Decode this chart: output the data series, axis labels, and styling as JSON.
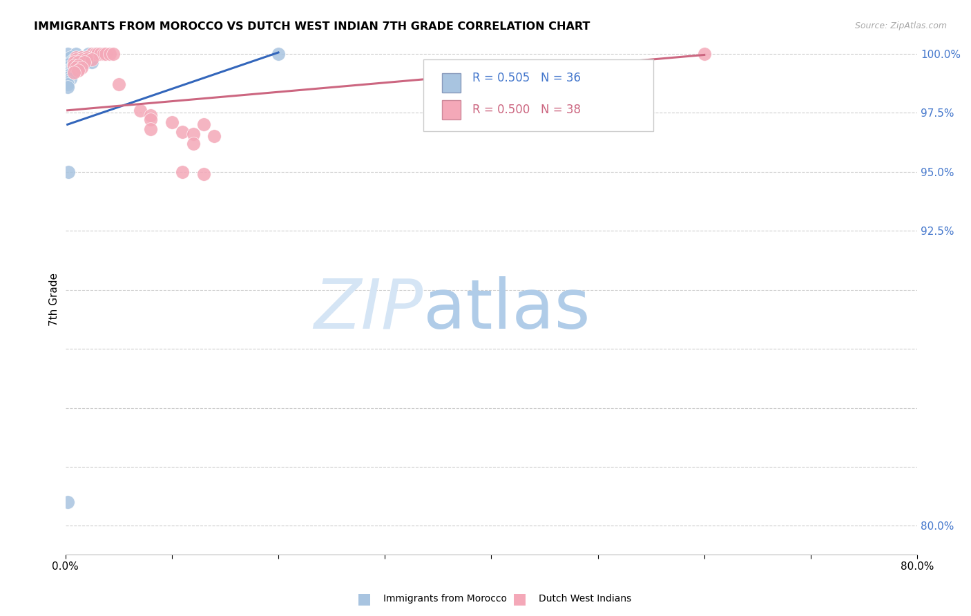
{
  "title": "IMMIGRANTS FROM MOROCCO VS DUTCH WEST INDIAN 7TH GRADE CORRELATION CHART",
  "source": "Source: ZipAtlas.com",
  "ylabel": "7th Grade",
  "xlim": [
    0.0,
    0.8
  ],
  "ylim": [
    0.788,
    1.004
  ],
  "ytick_positions": [
    0.8,
    0.825,
    0.85,
    0.875,
    0.9,
    0.925,
    0.95,
    0.975,
    1.0
  ],
  "ytick_labels": [
    "80.0%",
    "",
    "",
    "",
    "",
    "92.5%",
    "95.0%",
    "97.5%",
    "100.0%"
  ],
  "xtick_positions": [
    0.0,
    0.1,
    0.2,
    0.3,
    0.4,
    0.5,
    0.6,
    0.7,
    0.8
  ],
  "xtick_labels": [
    "0.0%",
    "",
    "",
    "",
    "",
    "",
    "",
    "",
    "80.0%"
  ],
  "legend_blue_r": "R = 0.505",
  "legend_blue_n": "N = 36",
  "legend_pink_r": "R = 0.500",
  "legend_pink_n": "N = 38",
  "blue_color": "#a8c4e0",
  "pink_color": "#f4a8b8",
  "blue_line_color": "#3366bb",
  "pink_line_color": "#cc6680",
  "watermark_zip": "ZIP",
  "watermark_atlas": "atlas",
  "blue_scatter": [
    [
      0.002,
      1.0
    ],
    [
      0.01,
      1.0
    ],
    [
      0.022,
      1.0
    ],
    [
      0.028,
      1.0
    ],
    [
      0.2,
      1.0
    ],
    [
      0.005,
      0.9985
    ],
    [
      0.015,
      0.9985
    ],
    [
      0.02,
      0.9985
    ],
    [
      0.025,
      0.9985
    ],
    [
      0.008,
      0.9975
    ],
    [
      0.018,
      0.9975
    ],
    [
      0.022,
      0.9975
    ],
    [
      0.005,
      0.9965
    ],
    [
      0.01,
      0.9965
    ],
    [
      0.015,
      0.9965
    ],
    [
      0.02,
      0.9965
    ],
    [
      0.025,
      0.9965
    ],
    [
      0.003,
      0.9955
    ],
    [
      0.008,
      0.9955
    ],
    [
      0.003,
      0.9945
    ],
    [
      0.006,
      0.994
    ],
    [
      0.009,
      0.994
    ],
    [
      0.003,
      0.993
    ],
    [
      0.005,
      0.993
    ],
    [
      0.008,
      0.993
    ],
    [
      0.002,
      0.992
    ],
    [
      0.004,
      0.992
    ],
    [
      0.006,
      0.992
    ],
    [
      0.003,
      0.991
    ],
    [
      0.003,
      0.99
    ],
    [
      0.005,
      0.9895
    ],
    [
      0.002,
      0.988
    ],
    [
      0.002,
      0.987
    ],
    [
      0.002,
      0.986
    ],
    [
      0.003,
      0.95
    ],
    [
      0.002,
      0.81
    ]
  ],
  "pink_scatter": [
    [
      0.025,
      1.0
    ],
    [
      0.028,
      1.0
    ],
    [
      0.03,
      1.0
    ],
    [
      0.033,
      1.0
    ],
    [
      0.036,
      1.0
    ],
    [
      0.038,
      1.0
    ],
    [
      0.042,
      1.0
    ],
    [
      0.045,
      1.0
    ],
    [
      0.6,
      1.0
    ],
    [
      0.01,
      0.9985
    ],
    [
      0.015,
      0.9985
    ],
    [
      0.02,
      0.9985
    ],
    [
      0.01,
      0.9975
    ],
    [
      0.015,
      0.9975
    ],
    [
      0.02,
      0.9975
    ],
    [
      0.025,
      0.9975
    ],
    [
      0.008,
      0.9965
    ],
    [
      0.012,
      0.9965
    ],
    [
      0.018,
      0.9965
    ],
    [
      0.008,
      0.995
    ],
    [
      0.012,
      0.995
    ],
    [
      0.01,
      0.994
    ],
    [
      0.015,
      0.994
    ],
    [
      0.012,
      0.993
    ],
    [
      0.008,
      0.992
    ],
    [
      0.05,
      0.987
    ],
    [
      0.07,
      0.976
    ],
    [
      0.08,
      0.974
    ],
    [
      0.08,
      0.972
    ],
    [
      0.1,
      0.971
    ],
    [
      0.13,
      0.97
    ],
    [
      0.08,
      0.968
    ],
    [
      0.11,
      0.967
    ],
    [
      0.12,
      0.966
    ],
    [
      0.14,
      0.965
    ],
    [
      0.12,
      0.962
    ],
    [
      0.11,
      0.95
    ],
    [
      0.13,
      0.949
    ]
  ],
  "blue_line_pts": [
    [
      0.002,
      0.97
    ],
    [
      0.2,
      1.0005
    ]
  ],
  "pink_line_pts": [
    [
      0.002,
      0.976
    ],
    [
      0.6,
      0.9995
    ]
  ]
}
